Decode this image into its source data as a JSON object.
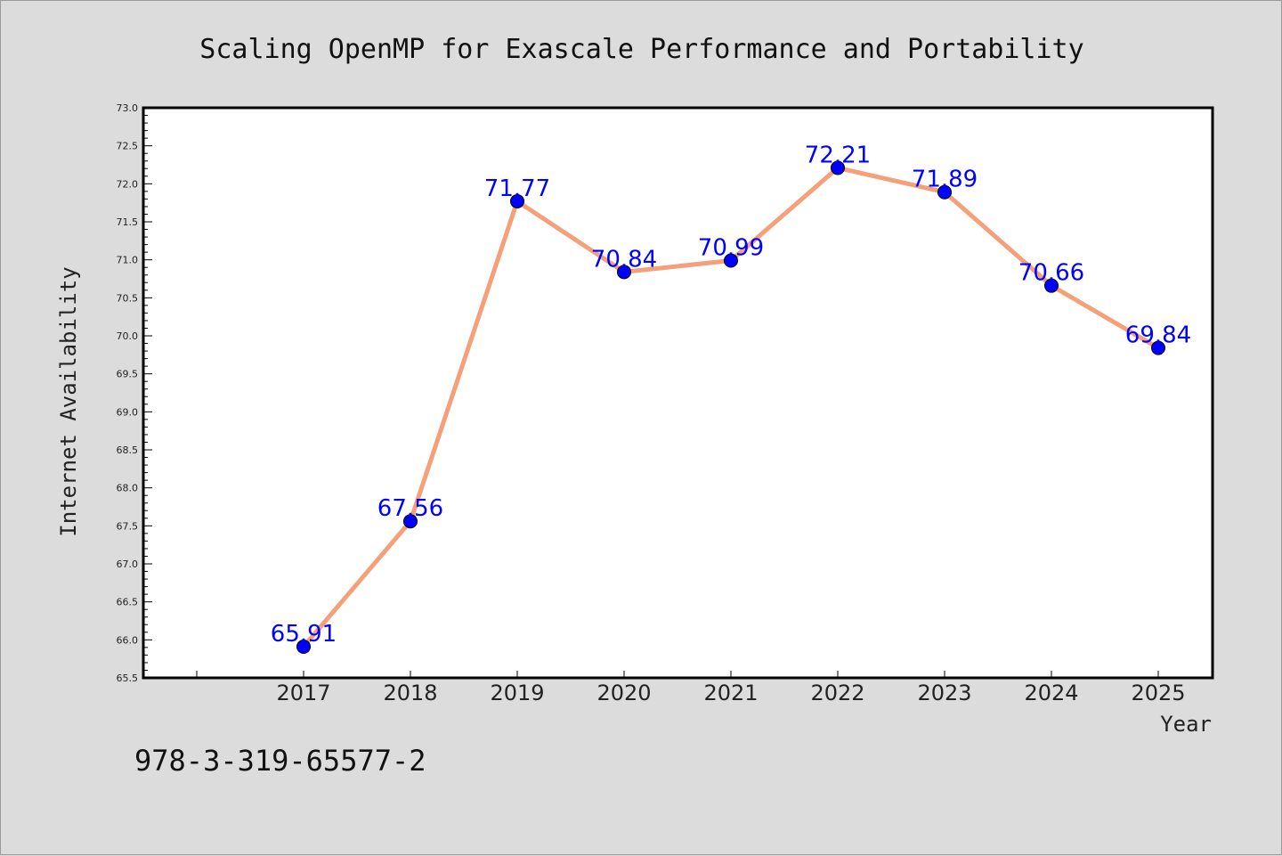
{
  "chart_data": {
    "type": "line",
    "title": "Scaling OpenMP for Exascale Performance and Portability",
    "xlabel": "Year",
    "ylabel": "Internet Availability",
    "categories": [
      "2017",
      "2018",
      "2019",
      "2020",
      "2021",
      "2022",
      "2023",
      "2024",
      "2025"
    ],
    "series": [
      {
        "values": [
          65.91,
          67.56,
          71.77,
          70.84,
          70.99,
          72.21,
          71.89,
          70.66,
          69.84
        ],
        "data_labels": [
          "65.91",
          "67.56",
          "71.77",
          "70.84",
          "70.99",
          "72.21",
          "71.89",
          "70.66",
          "69.84"
        ],
        "line_color": "#f4a07a",
        "marker_color": "#0000ff"
      }
    ],
    "ylim": [
      65.5,
      73.0
    ],
    "yticks": [
      "65.5",
      "66.0",
      "66.5",
      "67.0",
      "67.5",
      "68.0",
      "68.5",
      "69.0",
      "69.5",
      "70.0",
      "70.5",
      "71.0",
      "71.5",
      "72.0",
      "72.5",
      "73.0"
    ],
    "grid": false,
    "legend": "none",
    "background_color": "#dcdcdc",
    "plot_background": "#ffffff"
  },
  "footer_note": "978-3-319-65577-2"
}
